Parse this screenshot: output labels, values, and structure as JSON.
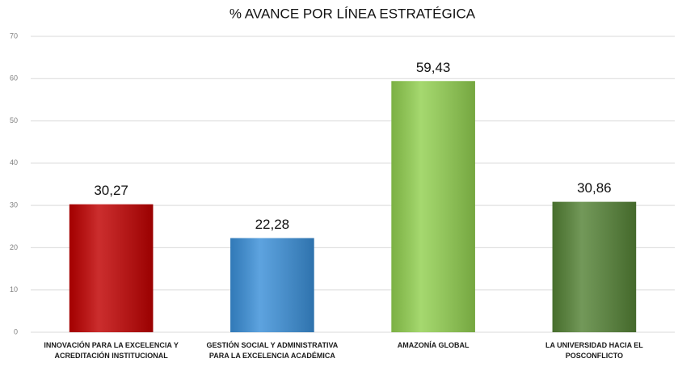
{
  "chart_data": {
    "type": "bar",
    "title": "% AVANCE POR LÍNEA ESTRATÉGICA",
    "categories": [
      "INNOVACIÓN PARA LA EXCELENCIA Y ACREDITACIÓN INSTITUCIONAL",
      "GESTIÓN SOCIAL Y ADMINISTRATIVA PARA LA EXCELENCIA ACADÉMICA",
      "AMAZONÍA GLOBAL",
      "LA UNIVERSIDAD HACIA EL POSCONFLICTO"
    ],
    "values": [
      30.27,
      22.28,
      59.43,
      30.86
    ],
    "value_labels": [
      "30,27",
      "22,28",
      "59,43",
      "30,86"
    ],
    "colors": [
      "#c00000",
      "#3a8fd8",
      "#92d050",
      "#548235"
    ],
    "ylim": [
      0,
      70
    ],
    "yticks": [
      0,
      10,
      20,
      30,
      40,
      50,
      60,
      70
    ],
    "grid": true
  }
}
